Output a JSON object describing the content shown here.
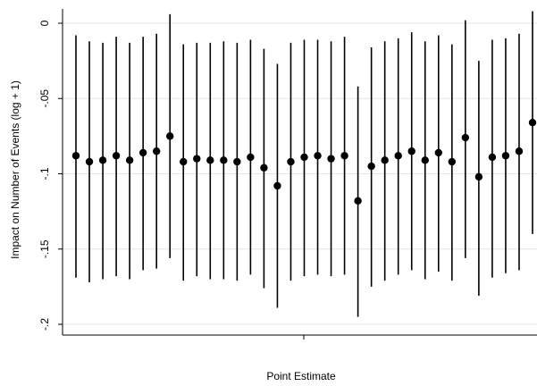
{
  "chart_data": {
    "type": "scatter",
    "title": "",
    "xlabel": "Point Estimate",
    "ylabel": "Impact on Number of Events (log + 1)",
    "ylim": [
      -0.2,
      0.0
    ],
    "yticks": [
      0,
      -0.05,
      -0.1,
      -0.15,
      -0.2
    ],
    "ytick_labels": [
      "0",
      "-.05",
      "-.1",
      "-.15",
      "-.2"
    ],
    "grid": "horizontal",
    "legend": "none",
    "point_color": "#000000",
    "series": [
      {
        "estimates": [
          -0.088,
          -0.092,
          -0.091,
          -0.088,
          -0.091,
          -0.086,
          -0.085,
          -0.075,
          -0.092,
          -0.09,
          -0.091,
          -0.091,
          -0.092,
          -0.089,
          -0.096,
          -0.108,
          -0.092,
          -0.089,
          -0.088,
          -0.09,
          -0.088,
          -0.118,
          -0.095,
          -0.091,
          -0.088,
          -0.085,
          -0.091,
          -0.086,
          -0.092,
          -0.076,
          -0.102,
          -0.089,
          -0.088,
          -0.085,
          -0.066
        ],
        "ci_upper": [
          -0.008,
          -0.012,
          -0.013,
          -0.009,
          -0.013,
          -0.009,
          -0.007,
          0.006,
          -0.014,
          -0.013,
          -0.013,
          -0.012,
          -0.013,
          -0.011,
          -0.017,
          -0.027,
          -0.013,
          -0.011,
          -0.011,
          -0.012,
          -0.009,
          -0.042,
          -0.016,
          -0.012,
          -0.01,
          -0.006,
          -0.012,
          -0.008,
          -0.014,
          0.002,
          -0.025,
          -0.011,
          -0.01,
          -0.007,
          0.008
        ],
        "ci_lower": [
          -0.169,
          -0.172,
          -0.17,
          -0.168,
          -0.17,
          -0.164,
          -0.163,
          -0.156,
          -0.171,
          -0.168,
          -0.17,
          -0.17,
          -0.171,
          -0.167,
          -0.176,
          -0.189,
          -0.171,
          -0.168,
          -0.167,
          -0.168,
          -0.167,
          -0.195,
          -0.175,
          -0.171,
          -0.167,
          -0.164,
          -0.17,
          -0.165,
          -0.171,
          -0.156,
          -0.181,
          -0.169,
          -0.166,
          -0.164,
          -0.14
        ]
      }
    ]
  }
}
